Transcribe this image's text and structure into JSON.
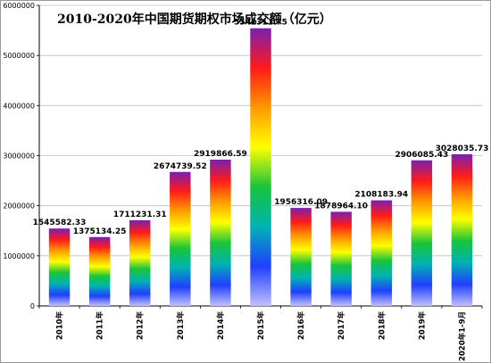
{
  "chart_data": {
    "type": "bar",
    "title": "2010-2020年中国期货期权市场成交额（亿元）",
    "xlabel": "",
    "ylabel": "",
    "categories": [
      "2010年",
      "2011年",
      "2012年",
      "2013年",
      "2014年",
      "2015年",
      "2016年",
      "2017年",
      "2018年",
      "2019年",
      "2020年1-9月"
    ],
    "values": [
      1545582.33,
      1375134.25,
      1711231.31,
      2674739.52,
      2919866.59,
      5542311.75,
      1956316.09,
      1878964.1,
      2108183.94,
      2906085.43,
      3028035.73
    ],
    "data_labels": [
      "1545582.33",
      "1375134.25",
      "1711231.31",
      "2674739.52",
      "2919866.59",
      "5542311.75",
      "1956316.09",
      "1878964.10",
      "2108183.94",
      "2906085.43",
      "3028035.73"
    ],
    "ylim": [
      0,
      6000000
    ],
    "yticks": [
      "0",
      "1000000",
      "2000000",
      "3000000",
      "4000000",
      "5000000",
      "6000000"
    ],
    "grid": true,
    "legend": "none",
    "bar_fill": "rainbow-gradient",
    "gradient_colors": [
      "#7a1fb0",
      "#ff1a1a",
      "#ff9900",
      "#ffff00",
      "#19c43a",
      "#00b3b3",
      "#1f3fff",
      "#c0c0ff"
    ]
  }
}
